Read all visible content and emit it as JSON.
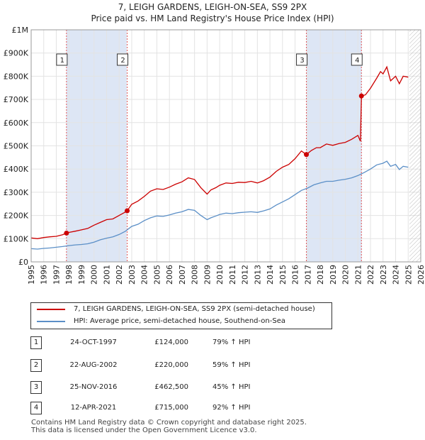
{
  "chart_data": {
    "type": "line",
    "title": "7, LEIGH GARDENS, LEIGH-ON-SEA, SS9 2PX",
    "subtitle": "Price paid vs. HM Land Registry's House Price Index (HPI)",
    "xlim": [
      1995,
      2026
    ],
    "ylim": [
      0,
      1000000
    ],
    "x_ticks": [
      1995,
      1996,
      1997,
      1998,
      1999,
      2000,
      2001,
      2002,
      2003,
      2004,
      2005,
      2006,
      2007,
      2008,
      2009,
      2010,
      2011,
      2012,
      2013,
      2014,
      2015,
      2016,
      2017,
      2018,
      2019,
      2020,
      2021,
      2022,
      2023,
      2024,
      2025,
      2026
    ],
    "y_ticks": [
      {
        "value": 0,
        "label": "£0"
      },
      {
        "value": 100000,
        "label": "£100K"
      },
      {
        "value": 200000,
        "label": "£200K"
      },
      {
        "value": 300000,
        "label": "£300K"
      },
      {
        "value": 400000,
        "label": "£400K"
      },
      {
        "value": 500000,
        "label": "£500K"
      },
      {
        "value": 600000,
        "label": "£600K"
      },
      {
        "value": 700000,
        "label": "£700K"
      },
      {
        "value": 800000,
        "label": "£800K"
      },
      {
        "value": 900000,
        "label": "£900K"
      },
      {
        "value": 1000000,
        "label": "£1M"
      }
    ],
    "grid": true,
    "hatch_after": 2025.1,
    "shaded_spans": [
      [
        1997.8,
        2002.6
      ],
      [
        2016.9,
        2021.3
      ]
    ],
    "series": [
      {
        "name": "7, LEIGH GARDENS, LEIGH-ON-SEA, SS9 2PX (semi-detached house)",
        "color": "#cc0000",
        "x": [
          1995.0,
          1995.5,
          1996.0,
          1996.5,
          1997.0,
          1997.5,
          1997.81,
          1998.0,
          1998.5,
          1999.0,
          1999.5,
          2000.0,
          2000.5,
          2001.0,
          2001.5,
          2002.0,
          2002.4,
          2002.64,
          2003.0,
          2003.5,
          2004.0,
          2004.5,
          2005.0,
          2005.5,
          2006.0,
          2006.5,
          2007.0,
          2007.5,
          2008.0,
          2008.5,
          2009.0,
          2009.3,
          2009.7,
          2010.0,
          2010.5,
          2011.0,
          2011.5,
          2012.0,
          2012.5,
          2013.0,
          2013.5,
          2014.0,
          2014.5,
          2015.0,
          2015.5,
          2016.0,
          2016.5,
          2016.9,
          2017.3,
          2017.7,
          2018.0,
          2018.5,
          2019.0,
          2019.5,
          2020.0,
          2020.5,
          2021.0,
          2021.2,
          2021.28,
          2021.6,
          2022.0,
          2022.5,
          2022.8,
          2023.0,
          2023.3,
          2023.6,
          2024.0,
          2024.3,
          2024.6,
          2025.0
        ],
        "values": [
          103000,
          100000,
          105000,
          108000,
          110000,
          117000,
          124000,
          127000,
          132000,
          138000,
          144000,
          158000,
          170000,
          182000,
          185000,
          200000,
          212000,
          220000,
          248000,
          262000,
          282000,
          305000,
          315000,
          312000,
          322000,
          335000,
          345000,
          362000,
          355000,
          320000,
          292000,
          310000,
          320000,
          330000,
          340000,
          338000,
          343000,
          342000,
          347000,
          340000,
          350000,
          365000,
          390000,
          408000,
          420000,
          445000,
          478000,
          462500,
          480000,
          492000,
          492000,
          508000,
          502000,
          510000,
          515000,
          528000,
          545000,
          520000,
          715000,
          720000,
          748000,
          792000,
          820000,
          810000,
          840000,
          780000,
          800000,
          768000,
          800000,
          796000
        ]
      },
      {
        "name": "HPI: Average price, semi-detached house, Southend-on-Sea",
        "color": "#5b8fc7",
        "x": [
          1995.0,
          1995.5,
          1996.0,
          1996.5,
          1997.0,
          1997.5,
          1998.0,
          1998.5,
          1999.0,
          1999.5,
          2000.0,
          2000.5,
          2001.0,
          2001.5,
          2002.0,
          2002.5,
          2003.0,
          2003.5,
          2004.0,
          2004.5,
          2005.0,
          2005.5,
          2006.0,
          2006.5,
          2007.0,
          2007.5,
          2008.0,
          2008.5,
          2009.0,
          2009.3,
          2009.7,
          2010.0,
          2010.5,
          2011.0,
          2011.5,
          2012.0,
          2012.5,
          2013.0,
          2013.5,
          2014.0,
          2014.5,
          2015.0,
          2015.5,
          2016.0,
          2016.5,
          2017.0,
          2017.5,
          2018.0,
          2018.5,
          2019.0,
          2019.5,
          2020.0,
          2020.5,
          2021.0,
          2021.5,
          2022.0,
          2022.5,
          2023.0,
          2023.3,
          2023.6,
          2024.0,
          2024.3,
          2024.6,
          2025.0
        ],
        "values": [
          57000,
          55000,
          58000,
          60000,
          63000,
          66000,
          70000,
          73000,
          75000,
          78000,
          85000,
          95000,
          102000,
          108000,
          118000,
          132000,
          153000,
          162000,
          178000,
          190000,
          198000,
          196000,
          202000,
          210000,
          216000,
          226000,
          222000,
          200000,
          182000,
          190000,
          198000,
          204000,
          210000,
          208000,
          212000,
          214000,
          216000,
          213000,
          220000,
          228000,
          245000,
          258000,
          272000,
          290000,
          308000,
          318000,
          332000,
          340000,
          347000,
          347000,
          352000,
          356000,
          362000,
          372000,
          385000,
          400000,
          418000,
          425000,
          434000,
          412000,
          420000,
          398000,
          412000,
          408000
        ]
      }
    ],
    "sales": [
      {
        "num": "1",
        "x": 1997.81,
        "value": 124000,
        "date": "24-OCT-1997",
        "price": "£124,000",
        "hpi": "79% ↑ HPI"
      },
      {
        "num": "2",
        "x": 2002.64,
        "value": 220000,
        "date": "22-AUG-2002",
        "price": "£220,000",
        "hpi": "59% ↑ HPI"
      },
      {
        "num": "3",
        "x": 2016.9,
        "value": 462500,
        "date": "25-NOV-2016",
        "price": "£462,500",
        "hpi": "45% ↑ HPI"
      },
      {
        "num": "4",
        "x": 2021.28,
        "value": 715000,
        "date": "12-APR-2021",
        "price": "£715,000",
        "hpi": "92% ↑ HPI"
      }
    ]
  },
  "footer": {
    "line1": "Contains HM Land Registry data © Crown copyright and database right 2025.",
    "line2": "This data is licensed under the Open Government Licence v3.0."
  }
}
